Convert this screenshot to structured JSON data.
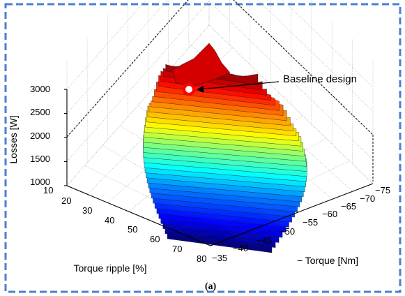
{
  "chart_data": {
    "type": "surface3d",
    "title": "",
    "caption": "(a)",
    "xlabel": "Torque ripple [%]",
    "ylabel": "− Torque [Nm]",
    "zlabel": "Losses [W]",
    "x_ticks": [
      "10",
      "20",
      "30",
      "40",
      "50",
      "60",
      "70",
      "80"
    ],
    "y_ticks": [
      "−35",
      "−40",
      "−45",
      "−50",
      "−55",
      "−60",
      "−65",
      "−70",
      "−75"
    ],
    "z_ticks": [
      "1000",
      "1500",
      "2000",
      "2500",
      "3000"
    ],
    "xlim": [
      10,
      80
    ],
    "ylim": [
      -75,
      -35
    ],
    "zlim": [
      1000,
      3000
    ],
    "colormap": "jet",
    "grid": true,
    "annotation": {
      "text": "Baseline design",
      "point": {
        "torque_ripple": 18,
        "torque": -70,
        "losses": 2900
      }
    }
  },
  "frame": {
    "border_color": "#4a7fd0"
  }
}
